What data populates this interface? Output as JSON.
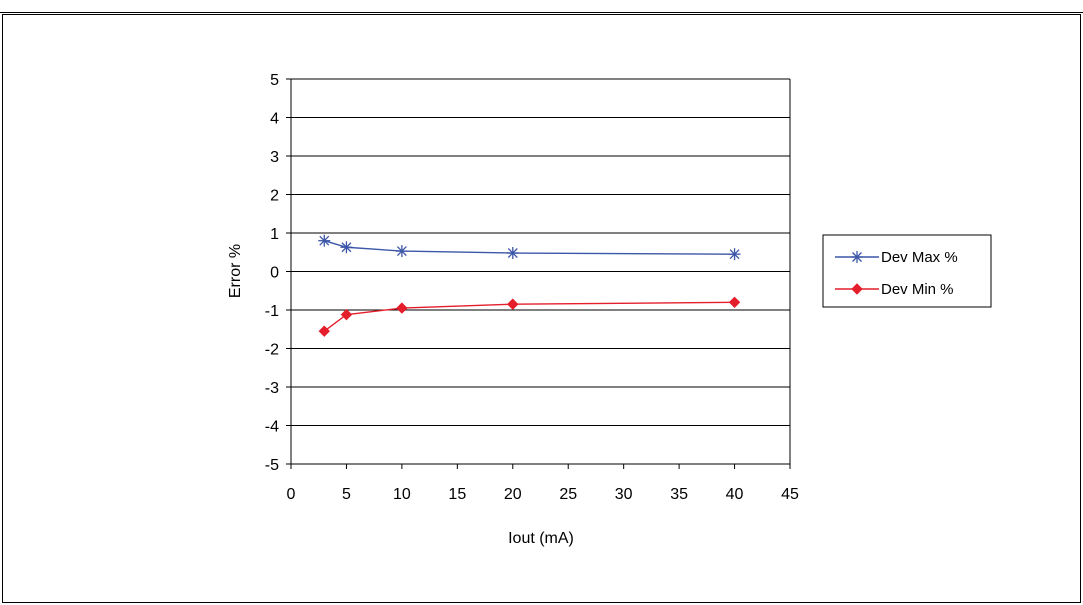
{
  "chart_data": {
    "type": "line",
    "title": "",
    "xlabel": "Iout (mA)",
    "ylabel": "Error %",
    "xlim": [
      0,
      45
    ],
    "ylim": [
      -5,
      5
    ],
    "xticks": [
      0,
      5,
      10,
      15,
      20,
      25,
      30,
      35,
      40,
      45
    ],
    "yticks": [
      5,
      4,
      3,
      2,
      1,
      0,
      -1,
      -2,
      -3,
      -4,
      -5
    ],
    "grid": "horizontal",
    "legend_position": "right",
    "series": [
      {
        "name": "Dev Max %",
        "color": "#3c57a8",
        "marker": "asterisk",
        "x": [
          3,
          5,
          10,
          20,
          40
        ],
        "y": [
          0.8,
          0.63,
          0.53,
          0.48,
          0.45
        ]
      },
      {
        "name": "Dev Min %",
        "color": "#e41e2b",
        "marker": "diamond",
        "x": [
          3,
          5,
          10,
          20,
          40
        ],
        "y": [
          -1.55,
          -1.12,
          -0.95,
          -0.85,
          -0.8
        ]
      }
    ]
  }
}
